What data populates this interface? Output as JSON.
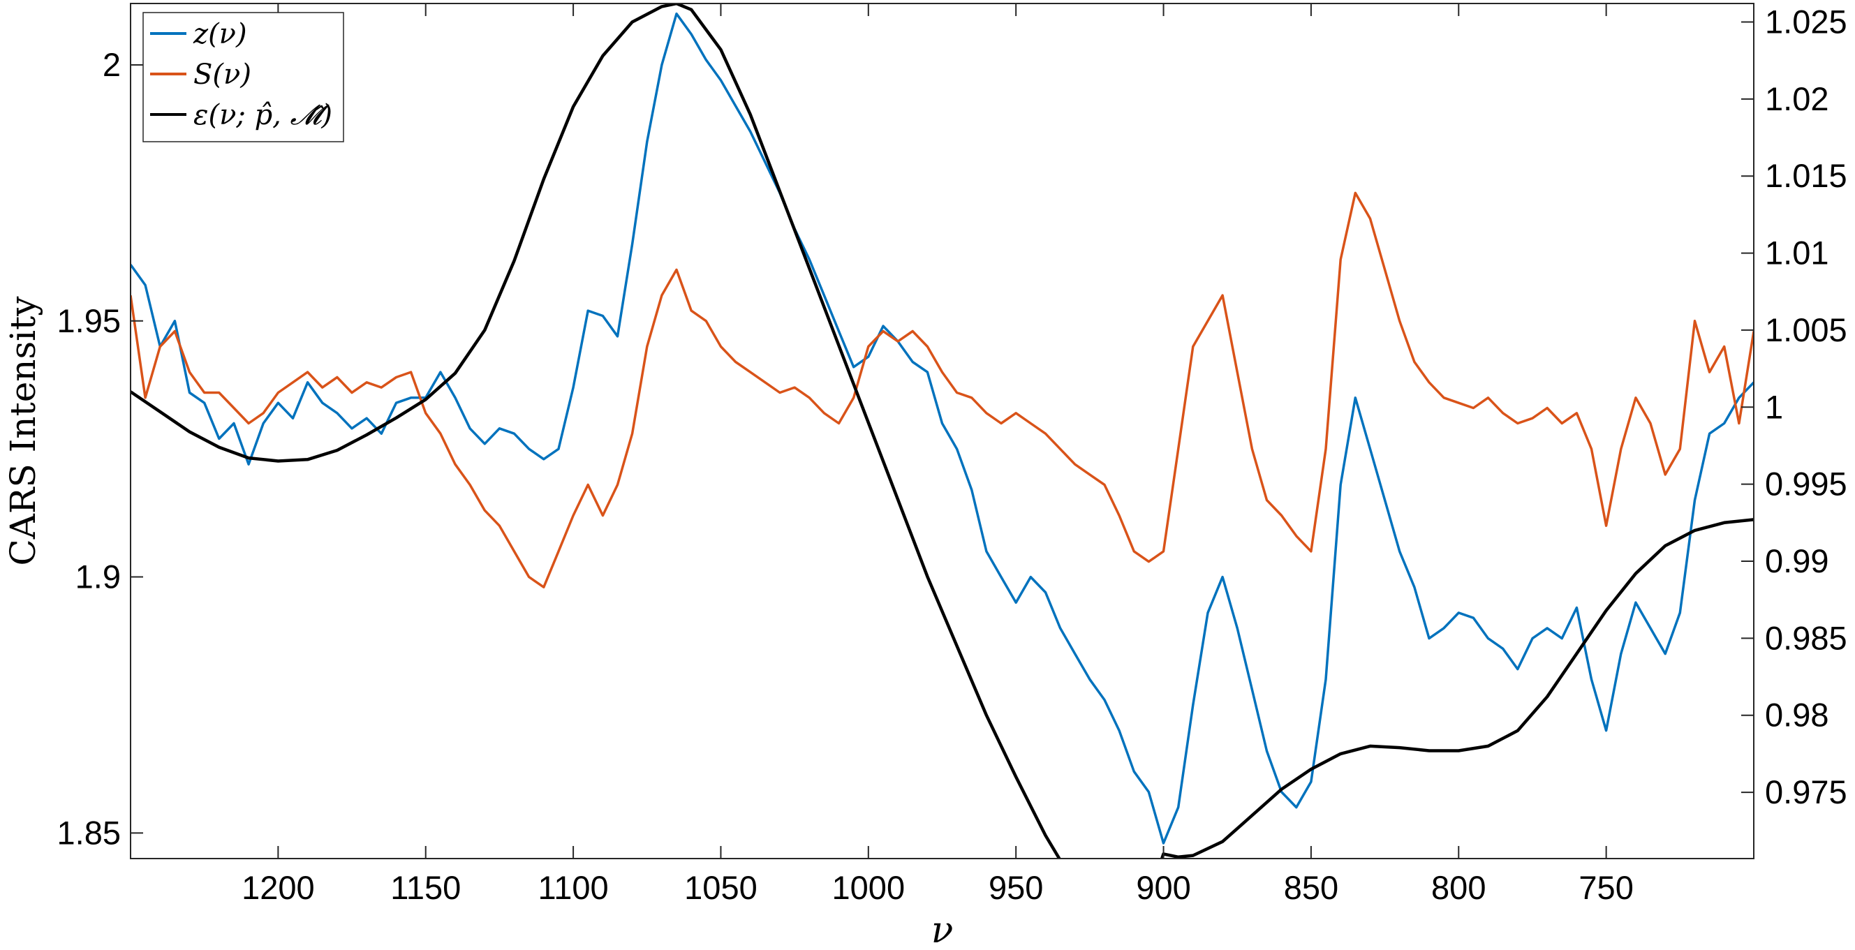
{
  "chart_data": {
    "type": "line",
    "xlabel": "ν",
    "ylabel": "CARS Intensity",
    "y2label": "",
    "xlim": [
      1250,
      700
    ],
    "x_reversed": true,
    "ylim": [
      1.845,
      2.012
    ],
    "y2lim": [
      0.9707,
      1.0262
    ],
    "xticks": [
      1200,
      1150,
      1100,
      1050,
      1000,
      950,
      900,
      850,
      800,
      750
    ],
    "yticks": [
      1.85,
      1.9,
      1.95,
      2
    ],
    "yticklabels": [
      "1.85",
      "1.9",
      "1.95",
      "2"
    ],
    "y2ticks": [
      0.975,
      0.98,
      0.985,
      0.99,
      0.995,
      1.0,
      1.005,
      1.01,
      1.015,
      1.02,
      1.025
    ],
    "y2ticklabels": [
      "0.975",
      "0.98",
      "0.985",
      "0.99",
      "0.995",
      "1",
      "1.005",
      "1.01",
      "1.015",
      "1.02",
      "1.025"
    ],
    "grid": false,
    "legend_position": "top-left",
    "series": [
      {
        "name": "z(ν)",
        "color": "#0072BD",
        "axis": "left",
        "x": [
          1250,
          1245,
          1240,
          1235,
          1230,
          1225,
          1220,
          1215,
          1210,
          1205,
          1200,
          1195,
          1190,
          1185,
          1180,
          1175,
          1170,
          1165,
          1160,
          1155,
          1150,
          1145,
          1140,
          1135,
          1130,
          1125,
          1120,
          1115,
          1110,
          1105,
          1100,
          1095,
          1090,
          1085,
          1080,
          1075,
          1070,
          1065,
          1060,
          1055,
          1050,
          1045,
          1040,
          1035,
          1030,
          1025,
          1020,
          1015,
          1010,
          1005,
          1000,
          995,
          990,
          985,
          980,
          975,
          970,
          965,
          960,
          955,
          950,
          945,
          940,
          935,
          930,
          925,
          920,
          915,
          910,
          905,
          900,
          895,
          890,
          885,
          880,
          875,
          870,
          865,
          860,
          855,
          850,
          845,
          840,
          835,
          830,
          825,
          820,
          815,
          810,
          805,
          800,
          795,
          790,
          785,
          780,
          775,
          770,
          765,
          760,
          755,
          750,
          745,
          740,
          735,
          730,
          725,
          720,
          715,
          710,
          705,
          700
        ],
        "y": [
          1.961,
          1.957,
          1.945,
          1.95,
          1.936,
          1.934,
          1.927,
          1.93,
          1.922,
          1.93,
          1.934,
          1.931,
          1.938,
          1.934,
          1.932,
          1.929,
          1.931,
          1.928,
          1.934,
          1.935,
          1.935,
          1.94,
          1.935,
          1.929,
          1.926,
          1.929,
          1.928,
          1.925,
          1.923,
          1.925,
          1.937,
          1.952,
          1.951,
          1.947,
          1.965,
          1.985,
          2.0,
          2.01,
          2.006,
          2.001,
          1.997,
          1.992,
          1.987,
          1.981,
          1.975,
          1.968,
          1.962,
          1.955,
          1.948,
          1.941,
          1.943,
          1.949,
          1.946,
          1.942,
          1.94,
          1.93,
          1.925,
          1.917,
          1.905,
          1.9,
          1.895,
          1.9,
          1.897,
          1.89,
          1.885,
          1.88,
          1.876,
          1.87,
          1.862,
          1.858,
          1.848,
          1.855,
          1.875,
          1.893,
          1.9,
          1.89,
          1.878,
          1.866,
          1.858,
          1.855,
          1.86,
          1.88,
          1.918,
          1.935,
          1.925,
          1.915,
          1.905,
          1.898,
          1.888,
          1.89,
          1.893,
          1.892,
          1.888,
          1.886,
          1.882,
          1.888,
          1.89,
          1.888,
          1.894,
          1.88,
          1.87,
          1.885,
          1.895,
          1.89,
          1.885,
          1.893,
          1.915,
          1.928,
          1.93,
          1.935,
          1.938
        ]
      },
      {
        "name": "S(ν)",
        "color": "#D95319",
        "axis": "left",
        "x": [
          1250,
          1245,
          1240,
          1235,
          1230,
          1225,
          1220,
          1215,
          1210,
          1205,
          1200,
          1195,
          1190,
          1185,
          1180,
          1175,
          1170,
          1165,
          1160,
          1155,
          1150,
          1145,
          1140,
          1135,
          1130,
          1125,
          1120,
          1115,
          1110,
          1105,
          1100,
          1095,
          1090,
          1085,
          1080,
          1075,
          1070,
          1065,
          1060,
          1055,
          1050,
          1045,
          1040,
          1035,
          1030,
          1025,
          1020,
          1015,
          1010,
          1005,
          1000,
          995,
          990,
          985,
          980,
          975,
          970,
          965,
          960,
          955,
          950,
          945,
          940,
          935,
          930,
          925,
          920,
          915,
          910,
          905,
          900,
          895,
          890,
          885,
          880,
          875,
          870,
          865,
          860,
          855,
          850,
          845,
          840,
          835,
          830,
          825,
          820,
          815,
          810,
          805,
          800,
          795,
          790,
          785,
          780,
          775,
          770,
          765,
          760,
          755,
          750,
          745,
          740,
          735,
          730,
          725,
          720,
          715,
          710,
          705,
          700
        ],
        "y": [
          1.955,
          1.935,
          1.945,
          1.948,
          1.94,
          1.936,
          1.936,
          1.933,
          1.93,
          1.932,
          1.936,
          1.938,
          1.94,
          1.937,
          1.939,
          1.936,
          1.938,
          1.937,
          1.939,
          1.94,
          1.932,
          1.928,
          1.922,
          1.918,
          1.913,
          1.91,
          1.905,
          1.9,
          1.898,
          1.905,
          1.912,
          1.918,
          1.912,
          1.918,
          1.928,
          1.945,
          1.955,
          1.96,
          1.952,
          1.95,
          1.945,
          1.942,
          1.94,
          1.938,
          1.936,
          1.937,
          1.935,
          1.932,
          1.93,
          1.935,
          1.945,
          1.948,
          1.946,
          1.948,
          1.945,
          1.94,
          1.936,
          1.935,
          1.932,
          1.93,
          1.932,
          1.93,
          1.928,
          1.925,
          1.922,
          1.92,
          1.918,
          1.912,
          1.905,
          1.903,
          1.905,
          1.925,
          1.945,
          1.95,
          1.955,
          1.94,
          1.925,
          1.915,
          1.912,
          1.908,
          1.905,
          1.925,
          1.962,
          1.975,
          1.97,
          1.96,
          1.95,
          1.942,
          1.938,
          1.935,
          1.934,
          1.933,
          1.935,
          1.932,
          1.93,
          1.931,
          1.933,
          1.93,
          1.932,
          1.925,
          1.91,
          1.925,
          1.935,
          1.93,
          1.92,
          1.925,
          1.95,
          1.94,
          1.945,
          1.93,
          1.948
        ]
      },
      {
        "name": "ε(ν; p̂, 𝓜̂)",
        "color": "#000000",
        "axis": "right",
        "x": [
          1250,
          1240,
          1230,
          1220,
          1210,
          1200,
          1190,
          1180,
          1170,
          1160,
          1150,
          1140,
          1130,
          1120,
          1110,
          1100,
          1090,
          1080,
          1070,
          1065,
          1060,
          1050,
          1040,
          1030,
          1020,
          1010,
          1000,
          990,
          980,
          970,
          960,
          950,
          940,
          930,
          920,
          910,
          900,
          895,
          890,
          880,
          870,
          860,
          850,
          840,
          830,
          820,
          810,
          800,
          790,
          780,
          770,
          760,
          750,
          740,
          730,
          720,
          710,
          700
        ],
        "y": [
          1.001,
          0.9997,
          0.9984,
          0.9974,
          0.9967,
          0.9965,
          0.9966,
          0.9972,
          0.9982,
          0.9993,
          1.0005,
          1.0022,
          1.005,
          1.0095,
          1.0148,
          1.0195,
          1.0228,
          1.025,
          1.026,
          1.0262,
          1.0258,
          1.0232,
          1.019,
          1.014,
          1.009,
          1.004,
          0.999,
          0.994,
          0.989,
          0.9845,
          0.98,
          0.976,
          0.9722,
          0.969,
          0.967,
          0.9655,
          0.971,
          0.9708,
          0.9709,
          0.9718,
          0.9735,
          0.9752,
          0.9765,
          0.9775,
          0.978,
          0.9779,
          0.9777,
          0.9777,
          0.978,
          0.979,
          0.9812,
          0.984,
          0.9868,
          0.9892,
          0.991,
          0.992,
          0.9925,
          0.9927
        ]
      }
    ]
  },
  "legend": {
    "items": [
      {
        "label": "z(ν)",
        "color": "#0072BD"
      },
      {
        "label": "S(ν)",
        "color": "#D95319"
      },
      {
        "label": "ε(ν; p̂, 𝓜̂)",
        "color": "#000000"
      }
    ]
  }
}
